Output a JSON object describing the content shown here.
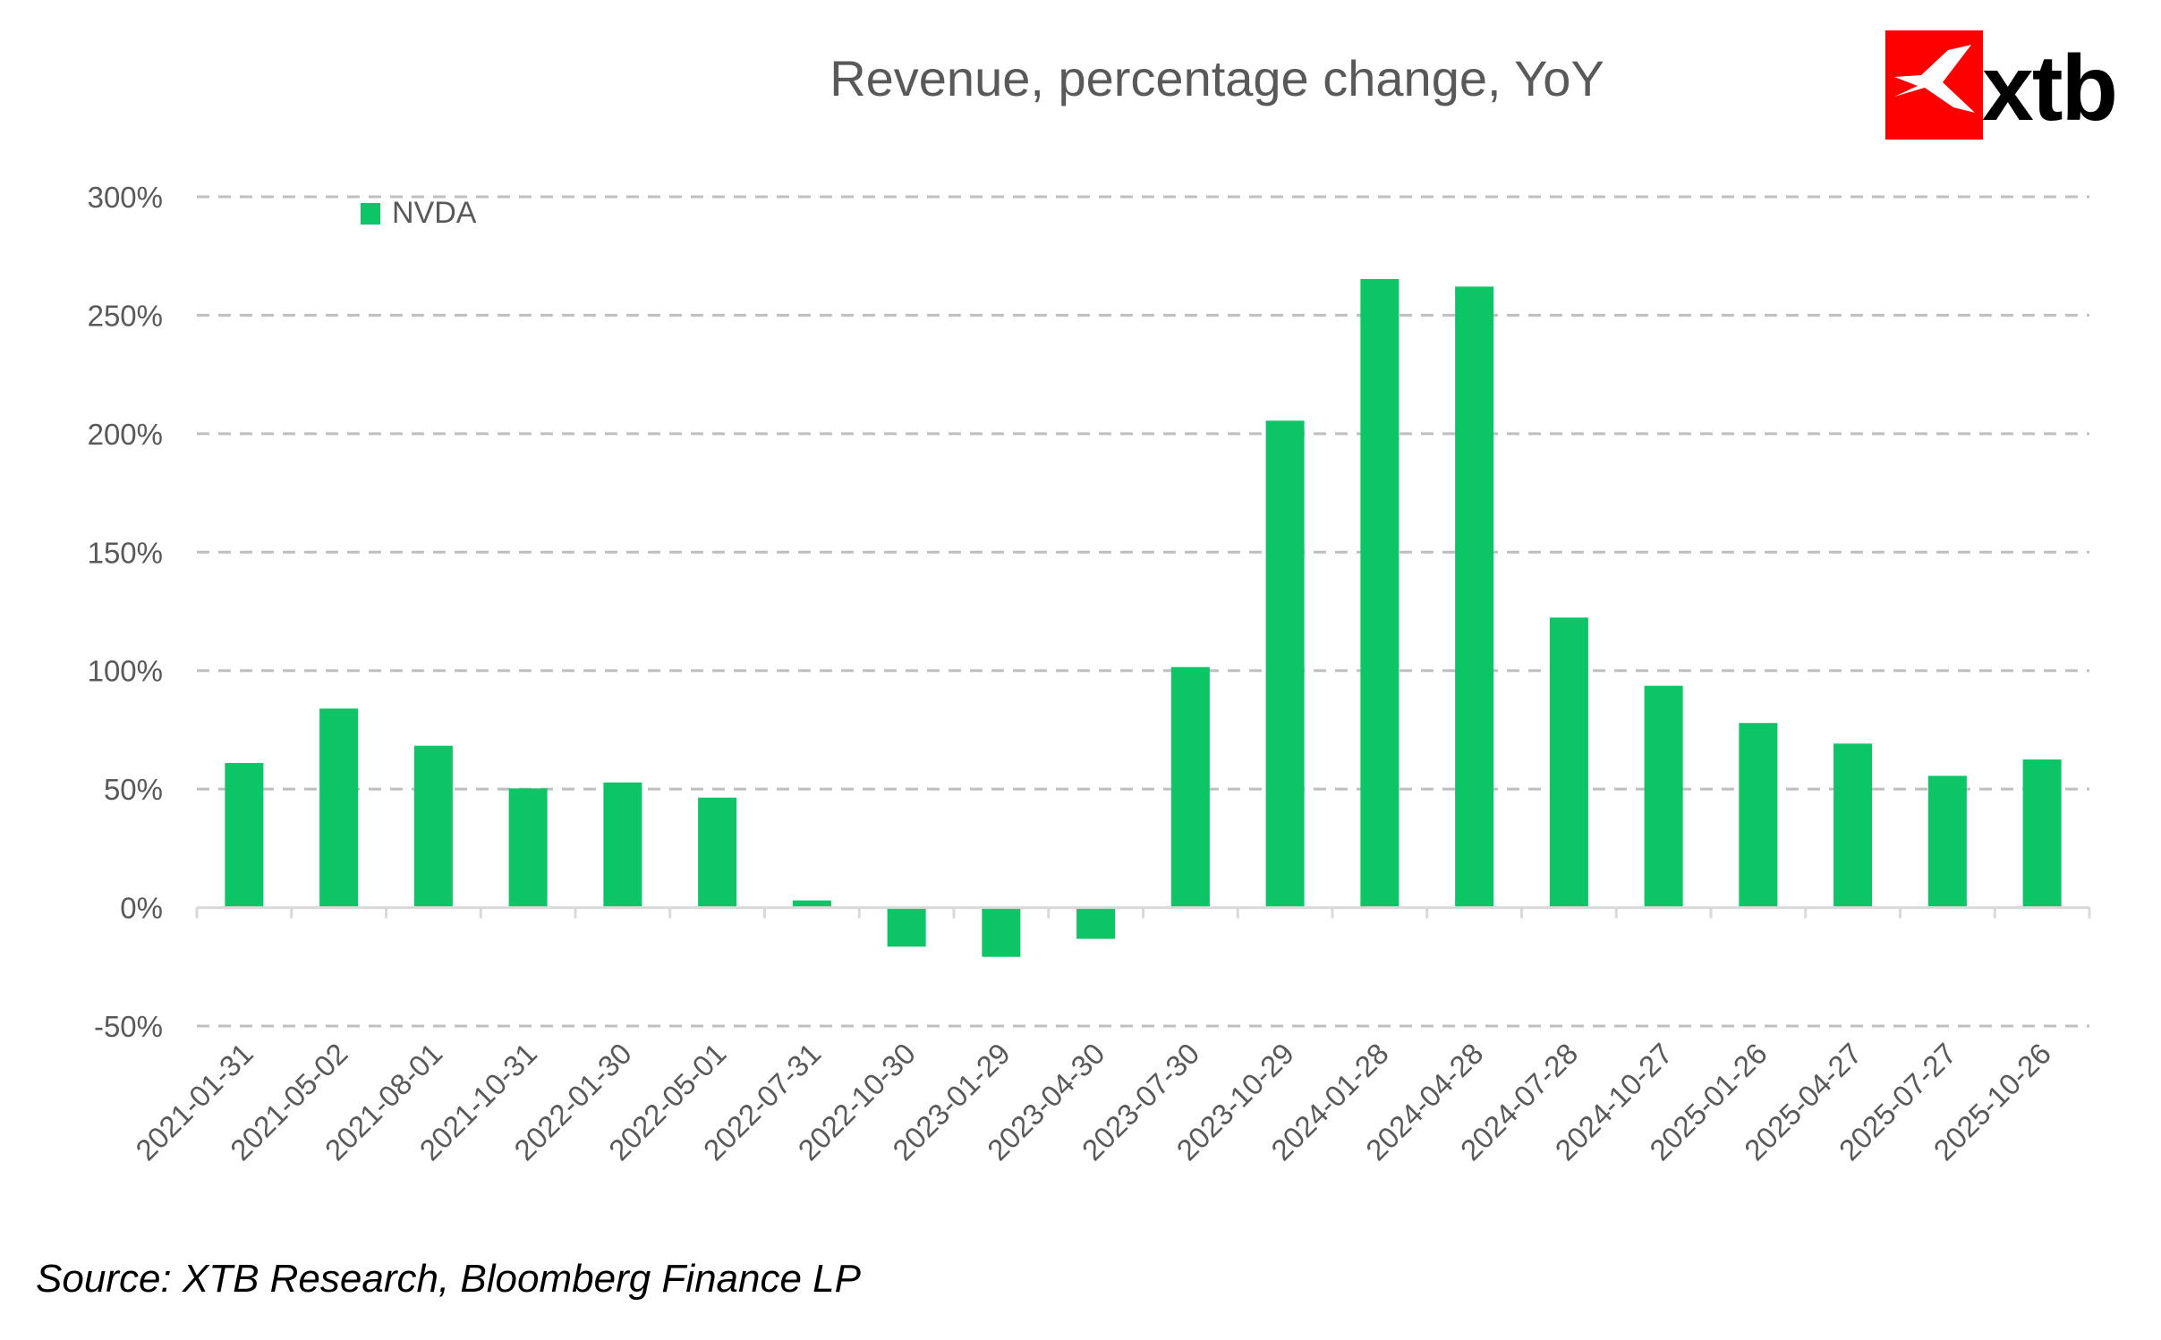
{
  "brand": {
    "logo_text": "xtb",
    "logo_color": "#ff0000"
  },
  "source": "Source: XTB Research, Bloomberg Finance LP",
  "chart_data": {
    "type": "bar",
    "title": "Revenue,  percentage change, YoY",
    "xlabel": "",
    "ylabel": "",
    "ylim": [
      -50,
      300
    ],
    "yticks": [
      -50,
      0,
      50,
      100,
      150,
      200,
      250,
      300
    ],
    "ytick_labels": [
      "-50%",
      "0%",
      "50%",
      "100%",
      "150%",
      "200%",
      "250%",
      "300%"
    ],
    "grid": true,
    "legend_position": "top-left",
    "categories": [
      "2021-01-31",
      "2021-05-02",
      "2021-08-01",
      "2021-10-31",
      "2022-01-30",
      "2022-05-01",
      "2022-07-31",
      "2022-10-30",
      "2023-01-29",
      "2023-04-30",
      "2023-07-30",
      "2023-10-29",
      "2024-01-28",
      "2024-04-28",
      "2024-07-28",
      "2024-10-27",
      "2025-01-26",
      "2025-04-27",
      "2025-07-27",
      "2025-10-26"
    ],
    "series": [
      {
        "name": "NVDA",
        "color": "#0dc466",
        "values": [
          61.0,
          84.0,
          68.3,
          50.3,
          52.8,
          46.4,
          3.0,
          -16.5,
          -20.8,
          -13.2,
          101.5,
          205.5,
          265.3,
          262.1,
          122.4,
          93.6,
          77.9,
          69.2,
          55.6,
          62.5
        ]
      }
    ]
  }
}
